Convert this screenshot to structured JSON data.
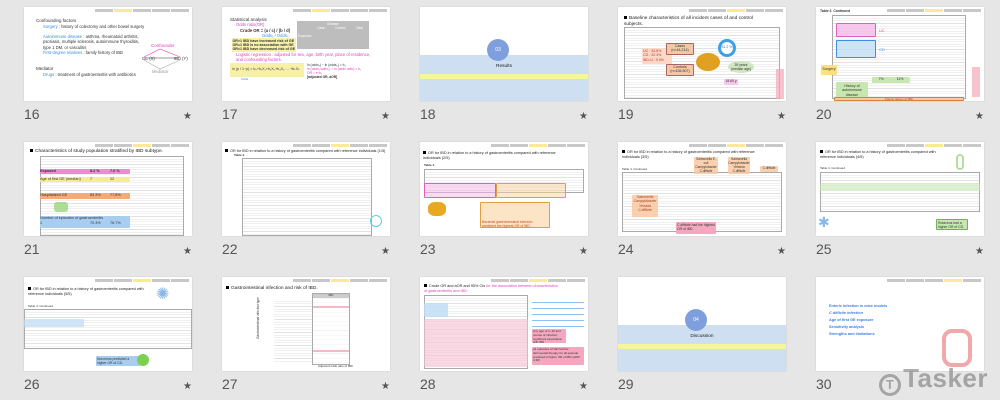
{
  "slides": [
    {
      "number": "16",
      "starred": true,
      "h1": "Confounding factors",
      "surg": "Surgery",
      "surg_d": " : history of colectomy and other bowel surgery",
      "auto": "Autoimmune disease",
      "auto_d": " : asthma, rheumatoid arthritis, psoriasis, multiple sclerosis, autoimmune thyroiditis, type 1 DM, or vasculitis",
      "fdr": "First-degree relatives",
      "fdr_d": " : family history of IBD",
      "h2": "Mediator",
      "drugs": "Drugs",
      "drugs_d": " : treatment of gastroenteritis with antibiotics",
      "confounder": "Confounder",
      "x": "GE (X)",
      "y": "IBD (Y)",
      "mediator": "Mediator"
    },
    {
      "number": "17",
      "starred": true,
      "h1": "Statistical analysis",
      "or": "Odds ratio(OR)",
      "crude": "Crude OR = (a / c) / (b / d)",
      "odds": "Odds₁ / Odds₀",
      "r1": "OR>1 IBD have increased risk of GE",
      "r2": "OR=1 IBD is no association with GE",
      "r3": "OR<1 IBD have decreased risk of GE",
      "disease": "Disease",
      "case": "Case",
      "control": "Control",
      "total": "Total",
      "expo": "Exposure",
      "logit": "Logistic regression : adjusted for sex, age, birth year, place of residence, and confounding factors.",
      "formula": "ln (p / 1−p) = b₀+b₁X₁+b₂X₂+b₃X₃ … +bₖXₖ",
      "odds_lbl": "Odds",
      "ln1": "ln (odds₁) − ln (odds₀) = b₁",
      "ln2": "ln (odds₁/odds₀) = ln (odds ratio) = b₁",
      "ln3": "OR = e^b₁",
      "adj": "[adjusted OR, aOR]"
    },
    {
      "number": "18",
      "starred": true,
      "sec_num": "03",
      "sec_title": "Results"
    },
    {
      "number": "19",
      "starred": true,
      "title": "Baseline characteristics of all incident cases of and control subjects.",
      "uc": "UC : 34.8%",
      "cd": "CD : 32.3%",
      "ibdu": "IBD-U : 9.9%",
      "cases": "Cases (n=44,214)",
      "controls": "Controls (n=436,507)",
      "male": "51.2 %",
      "age": "39 years (median age)",
      "fu": "18.60 y"
    },
    {
      "number": "20",
      "starred": true,
      "tbl": "Table 2. Continued",
      "uc": "UC",
      "cd": "CD",
      "surgery": "Surgery",
      "p1": "7%",
      "p2": "11%",
      "auto": "History of autoimmune disease",
      "fam": "Family history of IBD"
    },
    {
      "number": "21",
      "starred": true,
      "title": "Characteristics of study population stratified by IBD subtype.",
      "exposed": "Exposed",
      "e1": "8.2 %",
      "e2": "7.0 %",
      "age": "Age of first GE (median)",
      "a1": "7",
      "a2": "22",
      "hosp": "Hospitalized GE",
      "h1": "83.3%",
      "h2": "77.8%",
      "episodes": "Number of episodes of gastroenteritis",
      "ep": "1",
      "ep1": "70.3%",
      "ep2": "76.7%"
    },
    {
      "number": "22",
      "starred": true,
      "title": "OR for IBD in relation to a history of gastroenteritis compared with reference individuals (1/5)",
      "tbl": "Table 4."
    },
    {
      "number": "23",
      "starred": true,
      "title": "OR for IBD in relation to a history of gastroenteritis compared with reference individuals (2/5)",
      "tbl": "Table 4.",
      "note": "Bacterial gastrointestinal infection predicted the highest OR of IBD."
    },
    {
      "number": "24",
      "starred": true,
      "title": "OR for IBD in relation to a history of gastroenteritis compared with reference individuals (3/5)",
      "tbl": "Table 4. Continued",
      "b1": "Salmonella E. coli Campylobacter C.difficile",
      "b2": "Salmonella Campylobacter Yersinia C.difficile",
      "b3": "C.difficile",
      "b4": "Salmonella Campylobacter Yersinia C.difficile",
      "note": "C.difficile had the highest OR of IBD."
    },
    {
      "number": "25",
      "starred": true,
      "title": "OR for IBD in relation to a history of gastroenteritis compared with reference individuals (4/5)",
      "tbl": "Table 4. Continued",
      "note": "Rotavirus had a higher OR of CD."
    },
    {
      "number": "26",
      "starred": true,
      "title": "OR for IBD in relation to a history of gastroenteritis compared with reference individuals (5/5)",
      "tbl": "Table 4. Continued",
      "note": "Norovirus predicted a higher OR of CD."
    },
    {
      "number": "27",
      "starred": true,
      "title": "Gastrointestinal infection and risk of IBD.",
      "col": "IBD",
      "ylabel": "Gastrointestinal infection type",
      "xlabel": "Adjusted odds ratio of IBD"
    },
    {
      "number": "28",
      "starred": true,
      "title": "Crude OR and aOR and 95% CIs ",
      "title_hl": "for the association between characteristics of gastroenteritis and IBD.",
      "n1": "Any age of 1–10 and course of infection significant association with IBD",
      "n2": "≥4 episodes of GE had the detrimental therapy for all episode predicted a higher OR of IBD (aOR: 4.38)"
    },
    {
      "number": "29",
      "starred": false,
      "sec_num": "04",
      "sec_title": "Discussion"
    },
    {
      "number": "30",
      "starred": true,
      "items": [
        "Enteric infection in mice models",
        "C difficile infection",
        "Age of first GE exposure",
        "Sensitivity analysis",
        "Strengths and limitations"
      ]
    }
  ],
  "watermark": "Tasker",
  "colors": {
    "background": "#e6e6e6",
    "section_band": "#cddff1",
    "section_circle": "#7f9fdc",
    "highlight_yellow": "#f7f59a",
    "pink": "#e040c0",
    "blue": "#3a8ee6"
  }
}
